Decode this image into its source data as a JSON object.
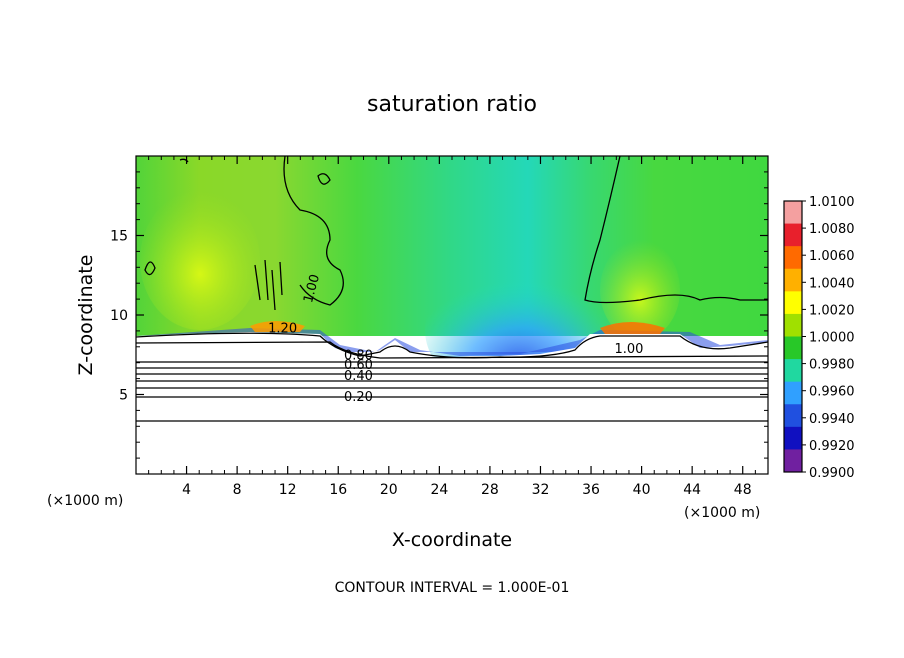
{
  "chart_data": {
    "type": "heatmap",
    "title": "saturation ratio",
    "xlabel": "X-coordinate",
    "ylabel": "Z-coordinate",
    "x_unit": "(×1000 m)",
    "z_unit": "(×1000 m)",
    "xlim": [
      0,
      50
    ],
    "ylim": [
      0,
      20
    ],
    "x_ticks": [
      4,
      8,
      12,
      16,
      20,
      24,
      28,
      32,
      36,
      40,
      44,
      48
    ],
    "y_ticks": [
      5,
      10,
      15
    ],
    "footer": "CONTOUR INTERVAL = 1.000E-01",
    "colorbar": {
      "min": 0.99,
      "max": 1.01,
      "labels": [
        "1.0100",
        "1.0080",
        "1.0060",
        "1.0040",
        "1.0020",
        "1.0000",
        "0.9980",
        "0.9960",
        "0.9940",
        "0.9920",
        "0.9900"
      ],
      "colors": [
        "#f4a0a0",
        "#e8202c",
        "#ff6a00",
        "#ffb000",
        "#ffff00",
        "#a0e000",
        "#28c828",
        "#20d8a0",
        "#30a0ff",
        "#2050e0",
        "#1010c0",
        "#7020a0"
      ]
    },
    "contour_lines": [
      {
        "level": 0.2,
        "z": 4.9,
        "label": "0.20"
      },
      {
        "level": 0.4,
        "z": 6.0,
        "label": "0.40"
      },
      {
        "level": 0.6,
        "z": 6.6,
        "label": "0.60"
      },
      {
        "level": 0.8,
        "z": 7.1,
        "label": "0.80"
      },
      {
        "level": 1.0,
        "z": 8.3,
        "label": "1.00"
      },
      {
        "level": 1.2,
        "z": 8.8,
        "label": "1.20"
      }
    ],
    "contour_labels_shown": [
      "1.20",
      "1.00",
      "1.00",
      "0.80",
      "0.60",
      "0.40",
      "0.20"
    ]
  }
}
